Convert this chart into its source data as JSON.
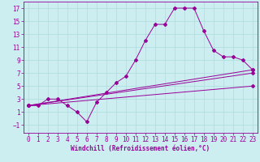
{
  "title": "",
  "xlabel": "Windchill (Refroidissement éolien,°C)",
  "bg_color": "#cceef0",
  "grid_color": "#aadddd",
  "line_color": "#990099",
  "xlim": [
    -0.5,
    23.5
  ],
  "ylim": [
    -2.2,
    18
  ],
  "xticks": [
    0,
    1,
    2,
    3,
    4,
    5,
    6,
    7,
    8,
    9,
    10,
    11,
    12,
    13,
    14,
    15,
    16,
    17,
    18,
    19,
    20,
    21,
    22,
    23
  ],
  "yticks": [
    -1,
    1,
    3,
    5,
    7,
    9,
    11,
    13,
    15,
    17
  ],
  "line1_x": [
    0,
    1,
    2,
    3,
    4,
    5,
    6,
    7,
    8,
    9,
    10,
    11,
    12,
    13,
    14,
    15,
    16,
    17,
    18,
    19,
    20,
    21,
    22,
    23
  ],
  "line1_y": [
    2.0,
    2.0,
    3.0,
    3.0,
    2.0,
    1.0,
    -0.5,
    2.5,
    4.0,
    5.5,
    6.5,
    9.0,
    12.0,
    14.5,
    14.5,
    17.0,
    17.0,
    17.0,
    13.5,
    10.5,
    9.5,
    9.5,
    9.0,
    7.5
  ],
  "line3_x": [
    0,
    23
  ],
  "line3_y": [
    2.0,
    7.5
  ],
  "line4_x": [
    0,
    23
  ],
  "line4_y": [
    2.0,
    5.0
  ],
  "line5_x": [
    0,
    23
  ],
  "line5_y": [
    2.0,
    7.0
  ],
  "marker": "D",
  "markersize": 2,
  "linewidth": 0.7,
  "tick_fontsize": 5.5,
  "xlabel_fontsize": 5.5
}
